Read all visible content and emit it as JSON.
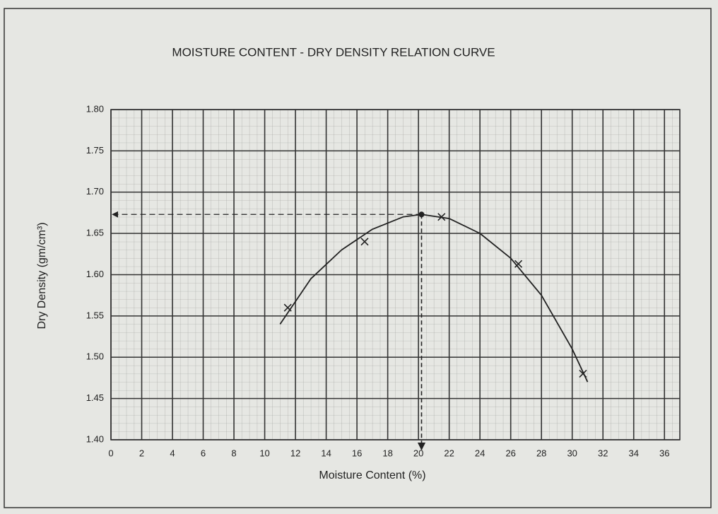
{
  "chart_data": {
    "type": "scatter",
    "title": "MOISTURE CONTENT - DRY DENSITY RELATION CURVE",
    "xlabel": "Moisture Content (%)",
    "ylabel": "Dry Density (gm/cm³)",
    "x": [
      11.5,
      16.5,
      21.5,
      26.5,
      30.7
    ],
    "values": [
      1.56,
      1.64,
      1.67,
      1.613,
      1.48
    ],
    "curve": {
      "x": [
        11,
        13,
        15,
        17,
        19,
        20.2,
        22,
        24,
        26,
        28,
        30,
        31
      ],
      "values": [
        1.54,
        1.595,
        1.63,
        1.655,
        1.67,
        1.673,
        1.668,
        1.65,
        1.62,
        1.575,
        1.51,
        1.47
      ]
    },
    "optimum": {
      "x": 20.2,
      "y": 1.673
    },
    "color": "#222222",
    "xlim": [
      0,
      37
    ],
    "ylim": [
      1.4,
      1.8
    ],
    "xticks": [
      0,
      2,
      4,
      6,
      8,
      10,
      12,
      14,
      16,
      18,
      20,
      22,
      24,
      26,
      28,
      30,
      32,
      34,
      36
    ],
    "yticks": [
      {
        "value": 1.4,
        "label": "1.40"
      },
      {
        "value": 1.45,
        "label": "1.45"
      },
      {
        "value": 1.5,
        "label": "1.50"
      },
      {
        "value": 1.55,
        "label": "1.55"
      },
      {
        "value": 1.6,
        "label": "1.60"
      },
      {
        "value": 1.65,
        "label": "1.65"
      },
      {
        "value": 1.7,
        "label": "1.70"
      },
      {
        "value": 1.75,
        "label": "1.75"
      },
      {
        "value": 1.8,
        "label": "1.80"
      }
    ],
    "grid": true
  }
}
